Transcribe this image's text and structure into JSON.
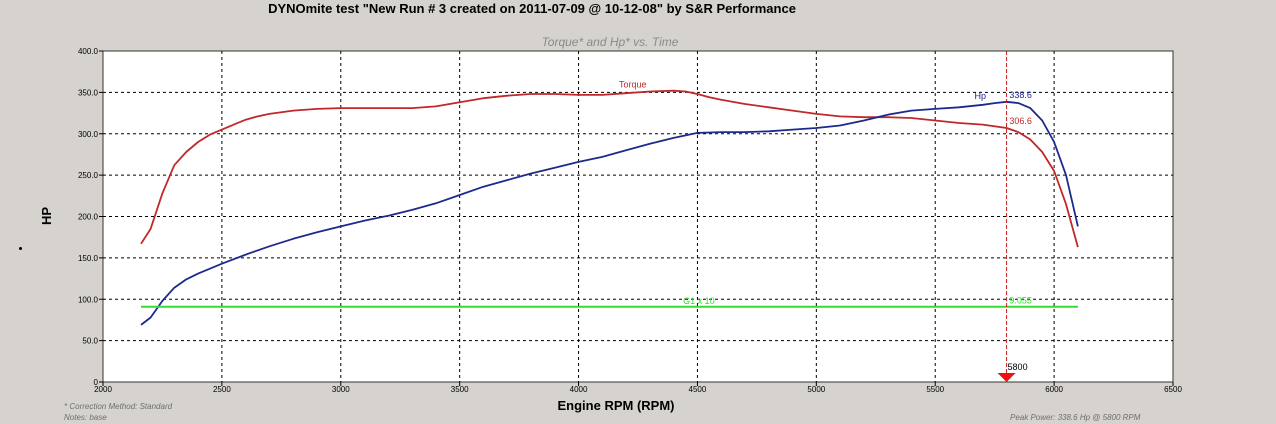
{
  "chart_data": {
    "type": "line",
    "title": "DYNOmite test \"New Run # 3 created on 2011-07-09 @ 10-12-08\" by S&R Performance",
    "subtitle": "Torque* and Hp* vs. Time",
    "xlabel": "Engine RPM (RPM)",
    "ylabel": "HP",
    "xlim": [
      2000,
      6500
    ],
    "ylim": [
      0,
      400
    ],
    "x_ticks": [
      "2000",
      "2500",
      "3000",
      "3500",
      "4000",
      "4500",
      "5000",
      "5500",
      "6000",
      "6500"
    ],
    "y_ticks": [
      "0",
      "50.0",
      "100.0",
      "150.0",
      "200.0",
      "250.0",
      "300.0",
      "350.0",
      "400.0"
    ],
    "grid": true,
    "series": [
      {
        "name": "Torque",
        "color": "#c0282a",
        "x": [
          2160,
          2200,
          2250,
          2300,
          2350,
          2400,
          2450,
          2500,
          2550,
          2600,
          2650,
          2700,
          2800,
          2900,
          3000,
          3100,
          3200,
          3300,
          3400,
          3500,
          3600,
          3700,
          3800,
          3900,
          4000,
          4100,
          4200,
          4300,
          4400,
          4450,
          4500,
          4550,
          4600,
          4700,
          4800,
          4900,
          5000,
          5100,
          5200,
          5300,
          5400,
          5500,
          5600,
          5700,
          5800,
          5850,
          5900,
          5950,
          6000,
          6050,
          6100
        ],
        "values": [
          167,
          185,
          228,
          262,
          278,
          290,
          299,
          305,
          311,
          317,
          321,
          324,
          328,
          330,
          331,
          331,
          331,
          331,
          333,
          338,
          343,
          346,
          348,
          348,
          347,
          347,
          349,
          351,
          352,
          351,
          348,
          344,
          341,
          336,
          332,
          328,
          324,
          321,
          320,
          320,
          319,
          316,
          313,
          311,
          307,
          302,
          293,
          278,
          255,
          215,
          163
        ]
      },
      {
        "name": "Hp",
        "color": "#1c2a8c",
        "x": [
          2160,
          2200,
          2250,
          2300,
          2350,
          2400,
          2500,
          2600,
          2700,
          2800,
          2900,
          3000,
          3100,
          3200,
          3300,
          3400,
          3500,
          3600,
          3700,
          3800,
          3900,
          4000,
          4100,
          4200,
          4300,
          4400,
          4500,
          4600,
          4700,
          4800,
          4900,
          5000,
          5100,
          5200,
          5300,
          5400,
          5500,
          5600,
          5700,
          5750,
          5800,
          5850,
          5900,
          5950,
          6000,
          6050,
          6100
        ],
        "values": [
          69,
          78,
          98,
          114,
          124,
          131,
          143,
          154,
          164,
          173,
          181,
          188,
          195,
          201,
          208,
          216,
          226,
          236,
          244,
          252,
          259,
          266,
          272,
          280,
          288,
          295,
          301,
          302,
          302,
          303,
          305,
          307,
          310,
          316,
          323,
          328,
          330,
          332,
          335,
          337,
          338.6,
          337,
          331,
          316,
          290,
          250,
          188
        ]
      },
      {
        "name": "",
        "color": "#33dd33",
        "x": [
          2160,
          6100
        ],
        "values": [
          91,
          91
        ]
      }
    ],
    "annotations": {
      "torque_label": "Torque",
      "hp_label": "Hp",
      "hp_peak": "338.6",
      "torque_at_cursor": "306.6",
      "green_mid_label": "G1 x 10",
      "green_cursor_label": "9.055"
    },
    "cursor": {
      "x": 5800,
      "label": "5800"
    }
  },
  "footer": {
    "correction": "* Correction Method: Standard",
    "notes": "Notes: base",
    "peak_power": "Peak Power: 338.6 Hp @ 5800 RPM"
  }
}
